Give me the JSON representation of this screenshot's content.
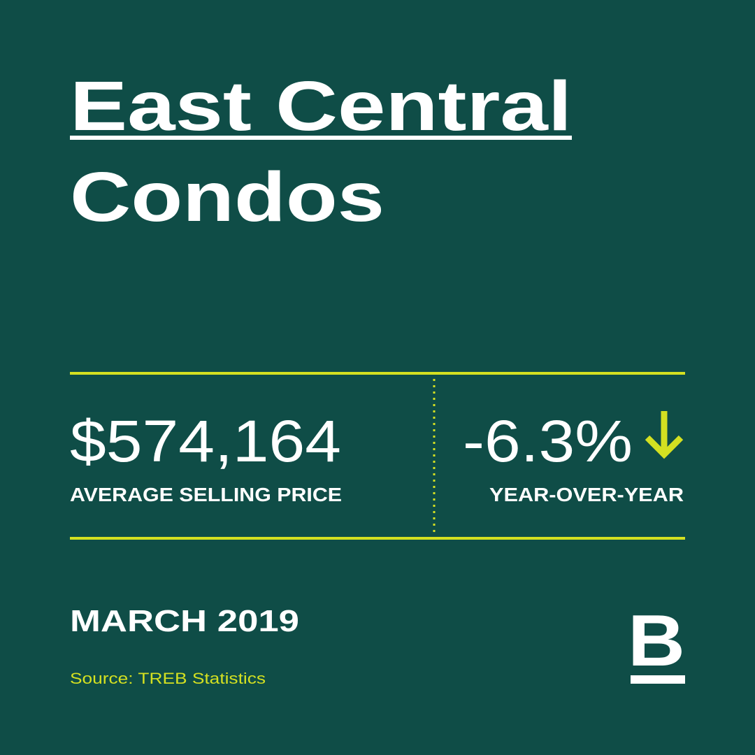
{
  "title": {
    "line1": "East Central",
    "line2": "Condos"
  },
  "stats": {
    "price": {
      "value": "$574,164",
      "label": "AVERAGE SELLING PRICE"
    },
    "change": {
      "value": "-6.3%",
      "label": "YEAR-OVER-YEAR"
    }
  },
  "date": "MARCH 2019",
  "source": "Source: TREB Statistics",
  "logo": "B"
}
